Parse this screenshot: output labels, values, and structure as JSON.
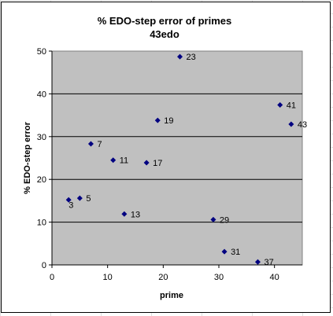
{
  "chart_data": {
    "type": "scatter",
    "title": "% EDO-step error of primes",
    "subtitle": "43edo",
    "xlabel": "prime",
    "ylabel": "% EDO-step error",
    "xlim": [
      0,
      45
    ],
    "ylim": [
      0,
      50
    ],
    "xticks": [
      "0",
      "10",
      "20",
      "30",
      "40"
    ],
    "yticks": [
      "0",
      "10",
      "20",
      "30",
      "40",
      "50"
    ],
    "grid": "horizontal",
    "plot_background": "#c0c0c0",
    "marker_color": "#000080",
    "points": [
      {
        "x": 3,
        "y": 15.2,
        "label": "3"
      },
      {
        "x": 5,
        "y": 15.6,
        "label": "5"
      },
      {
        "x": 7,
        "y": 28.3,
        "label": "7"
      },
      {
        "x": 11,
        "y": 24.5,
        "label": "11"
      },
      {
        "x": 13,
        "y": 11.9,
        "label": "13"
      },
      {
        "x": 17,
        "y": 23.9,
        "label": "17"
      },
      {
        "x": 19,
        "y": 33.8,
        "label": "19"
      },
      {
        "x": 23,
        "y": 48.7,
        "label": "23"
      },
      {
        "x": 29,
        "y": 10.6,
        "label": "29"
      },
      {
        "x": 31,
        "y": 3.1,
        "label": "31"
      },
      {
        "x": 37,
        "y": 0.7,
        "label": "37"
      },
      {
        "x": 41,
        "y": 37.4,
        "label": "41"
      },
      {
        "x": 43,
        "y": 32.9,
        "label": "43"
      }
    ]
  }
}
